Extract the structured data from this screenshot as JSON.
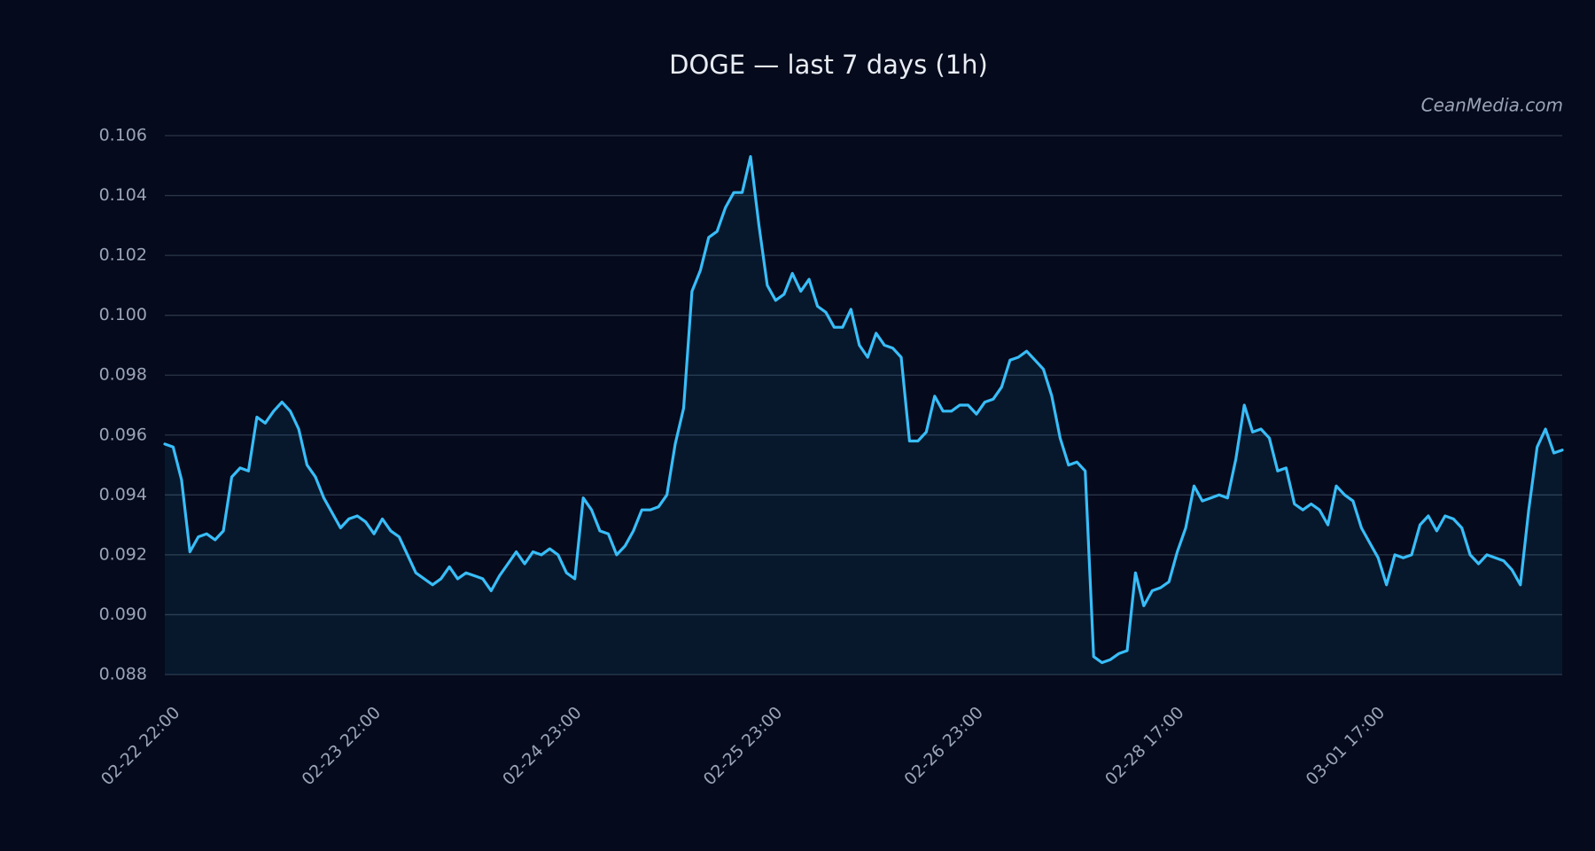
{
  "chart_data": {
    "type": "area",
    "title": "DOGE — last 7 days (1h)",
    "watermark": "CeanMedia.com",
    "categories": [
      "02-22 22:00",
      null,
      null,
      null,
      null,
      null,
      null,
      null,
      null,
      null,
      null,
      null,
      null,
      null,
      null,
      null,
      null,
      null,
      null,
      null,
      null,
      null,
      null,
      null,
      "02-23 22:00",
      null,
      null,
      null,
      null,
      null,
      null,
      null,
      null,
      null,
      null,
      null,
      null,
      null,
      null,
      null,
      null,
      null,
      null,
      null,
      null,
      null,
      null,
      null,
      "02-24 23:00",
      null,
      null,
      null,
      null,
      null,
      null,
      null,
      null,
      null,
      null,
      null,
      null,
      null,
      null,
      null,
      null,
      null,
      null,
      null,
      null,
      null,
      null,
      null,
      "02-25 23:00",
      null,
      null,
      null,
      null,
      null,
      null,
      null,
      null,
      null,
      null,
      null,
      null,
      null,
      null,
      null,
      null,
      null,
      null,
      null,
      null,
      null,
      null,
      null,
      "02-26 23:00",
      null,
      null,
      null,
      null,
      null,
      null,
      null,
      null,
      null,
      null,
      null,
      null,
      null,
      null,
      null,
      null,
      null,
      null,
      null,
      null,
      null,
      null,
      null,
      "02-28 17:00",
      null,
      null,
      null,
      null,
      null,
      null,
      null,
      null,
      null,
      null,
      null,
      null,
      null,
      null,
      null,
      null,
      null,
      null,
      null,
      null,
      null,
      null,
      null,
      "03-01 17:00",
      null,
      null,
      null,
      null,
      null,
      null,
      null,
      null,
      null,
      null,
      null,
      null,
      null,
      null,
      null,
      null,
      null,
      null,
      null,
      null,
      null,
      null,
      null
    ],
    "series": [
      {
        "name": "DOGE",
        "color": "#38bdf8",
        "values": [
          0.0957,
          0.0956,
          0.0945,
          0.0921,
          0.0926,
          0.0927,
          0.0925,
          0.0928,
          0.0946,
          0.0949,
          0.0948,
          0.0966,
          0.0964,
          0.0968,
          0.0971,
          0.0968,
          0.0962,
          0.095,
          0.0946,
          0.0939,
          0.0934,
          0.0929,
          0.0932,
          0.0933,
          0.0931,
          0.0927,
          0.0932,
          0.0928,
          0.0926,
          0.092,
          0.0914,
          0.0912,
          0.091,
          0.0912,
          0.0916,
          0.0912,
          0.0914,
          0.0913,
          0.0912,
          0.0908,
          0.0913,
          0.0917,
          0.0921,
          0.0917,
          0.0921,
          0.092,
          0.0922,
          0.092,
          0.0914,
          0.0912,
          0.0939,
          0.0935,
          0.0928,
          0.0927,
          0.092,
          0.0923,
          0.0928,
          0.0935,
          0.0935,
          0.0936,
          0.094,
          0.0957,
          0.0969,
          0.1008,
          0.1015,
          0.1026,
          0.1028,
          0.1036,
          0.1041,
          0.1041,
          0.1053,
          0.103,
          0.101,
          0.1005,
          0.1007,
          0.1014,
          0.1008,
          0.1012,
          0.1003,
          0.1001,
          0.0996,
          0.0996,
          0.1002,
          0.099,
          0.0986,
          0.0994,
          0.099,
          0.0989,
          0.0986,
          0.0958,
          0.0958,
          0.0961,
          0.0973,
          0.0968,
          0.0968,
          0.097,
          0.097,
          0.0967,
          0.0971,
          0.0972,
          0.0976,
          0.0985,
          0.0986,
          0.0988,
          0.0985,
          0.0982,
          0.0973,
          0.0959,
          0.095,
          0.0951,
          0.0948,
          0.0886,
          0.0884,
          0.0885,
          0.0887,
          0.0888,
          0.0914,
          0.0903,
          0.0908,
          0.0909,
          0.0911,
          0.0921,
          0.0929,
          0.0943,
          0.0938,
          0.0939,
          0.094,
          0.0939,
          0.0952,
          0.097,
          0.0961,
          0.0962,
          0.0959,
          0.0948,
          0.0949,
          0.0937,
          0.0935,
          0.0937,
          0.0935,
          0.093,
          0.0943,
          0.094,
          0.0938,
          0.0929,
          0.0924,
          0.0919,
          0.091,
          0.092,
          0.0919,
          0.092,
          0.093,
          0.0933,
          0.0928,
          0.0933,
          0.0932,
          0.0929,
          0.092,
          0.0917,
          0.092,
          0.0919,
          0.0918,
          0.0915,
          0.091,
          0.0935,
          0.0956,
          0.0962,
          0.0954,
          0.0955
        ]
      }
    ],
    "ylim": [
      0.088,
      0.106
    ],
    "yticks": [
      {
        "value": 0.088,
        "label": "0.088"
      },
      {
        "value": 0.09,
        "label": "0.090"
      },
      {
        "value": 0.092,
        "label": "0.092"
      },
      {
        "value": 0.094,
        "label": "0.094"
      },
      {
        "value": 0.096,
        "label": "0.096"
      },
      {
        "value": 0.098,
        "label": "0.098"
      },
      {
        "value": 0.1,
        "label": "0.100"
      },
      {
        "value": 0.102,
        "label": "0.102"
      },
      {
        "value": 0.104,
        "label": "0.104"
      },
      {
        "value": 0.106,
        "label": "0.106"
      }
    ],
    "grid": true
  }
}
